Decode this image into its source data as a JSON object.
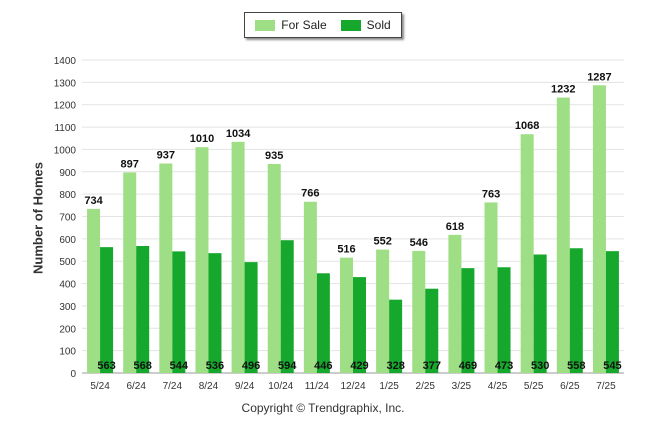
{
  "chart_data": {
    "type": "bar",
    "categories": [
      "5/24",
      "6/24",
      "7/24",
      "8/24",
      "9/24",
      "10/24",
      "11/24",
      "12/24",
      "1/25",
      "2/25",
      "3/25",
      "4/25",
      "5/25",
      "6/25",
      "7/25"
    ],
    "series": [
      {
        "name": "For Sale",
        "color": "#9ede84",
        "values": [
          734,
          897,
          937,
          1010,
          1034,
          935,
          766,
          516,
          552,
          546,
          618,
          763,
          1068,
          1232,
          1287
        ]
      },
      {
        "name": "Sold",
        "color": "#16a82c",
        "values": [
          563,
          568,
          544,
          536,
          496,
          594,
          446,
          429,
          328,
          377,
          469,
          473,
          530,
          558,
          545
        ]
      }
    ],
    "ylabel": "Number of Homes",
    "ylim": [
      0,
      1400
    ],
    "ytick_step": 100,
    "grid": true,
    "legend": "top-center"
  },
  "footer": {
    "copyright": "Copyright © Trendgraphix, Inc."
  }
}
